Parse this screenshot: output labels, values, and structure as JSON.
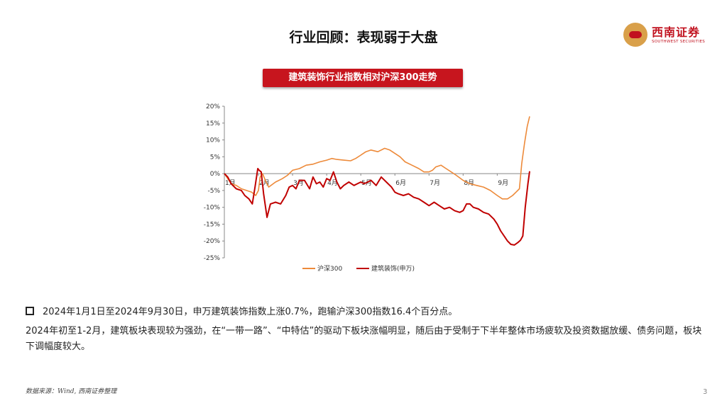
{
  "header": {
    "title": "行业回顾：表现弱于大盘",
    "logo_cn": "西南证券",
    "logo_en": "SOUTHWEST SECURITIES"
  },
  "chart_title": "建筑装饰行业指数相对沪深300走势",
  "notes": {
    "line1": "2024年1月1日至2024年9月30日，申万建筑装饰指数上涨0.7%，跑输沪深300指数16.4个百分点。",
    "line2": "2024年初至1-2月，建筑板块表现较为强劲，在“一带一路”、“中特估”的驱动下板块涨幅明显，随后由于受制于下半年整体市场疲软及投资数据放缓、债务问题，板块下调幅度较大。"
  },
  "source": "数据来源：Wind, 西南证券整理",
  "page_number": "3",
  "colors": {
    "accent": "#c7151e",
    "hs300": "#ed8a3a",
    "construction": "#c00000"
  },
  "chart_data": {
    "type": "line",
    "title": "建筑装饰行业指数相对沪深300走势",
    "xlabel": "",
    "ylabel": "",
    "x_tick_labels": [
      "1月",
      "2月",
      "3月",
      "4月",
      "5月",
      "6月",
      "7月",
      "8月",
      "9月"
    ],
    "x_tick_positions": [
      1,
      2,
      3,
      4,
      5,
      6,
      7,
      8,
      9
    ],
    "xlim": [
      1,
      9.95
    ],
    "ylim": [
      -25,
      20
    ],
    "y_ticks": [
      20,
      15,
      10,
      5,
      0,
      -5,
      -10,
      -15,
      -20,
      -25
    ],
    "y_tick_labels": [
      "20%",
      "15%",
      "10%",
      "5%",
      "0%",
      "-5%",
      "-10%",
      "-15%",
      "-20%",
      "-25%"
    ],
    "legend_position": "bottom",
    "series": [
      {
        "name": "沪深300",
        "color": "#ed8a3a",
        "x": [
          1.0,
          1.1,
          1.2,
          1.35,
          1.5,
          1.65,
          1.8,
          1.92,
          2.0,
          2.05,
          2.12,
          2.2,
          2.3,
          2.5,
          2.7,
          2.85,
          3.0,
          3.2,
          3.4,
          3.6,
          3.8,
          4.0,
          4.15,
          4.3,
          4.5,
          4.7,
          4.85,
          5.0,
          5.15,
          5.3,
          5.5,
          5.7,
          5.85,
          6.0,
          6.15,
          6.3,
          6.5,
          6.7,
          6.85,
          7.0,
          7.1,
          7.2,
          7.35,
          7.5,
          7.65,
          7.8,
          8.0,
          8.2,
          8.4,
          8.6,
          8.8,
          9.0,
          9.15,
          9.3,
          9.45,
          9.55,
          9.65,
          9.72,
          9.8,
          9.88,
          9.95
        ],
        "y": [
          0,
          -1.5,
          -3,
          -3.5,
          -4.5,
          -5,
          -5.5,
          -6.5,
          -5,
          -1,
          0,
          -2,
          -4,
          -2.5,
          -1.5,
          -0.5,
          1,
          1.5,
          2.5,
          2.8,
          3.5,
          4,
          4.5,
          4.2,
          4.0,
          3.8,
          4.5,
          5.5,
          6.5,
          7.0,
          6.5,
          7.5,
          7.0,
          6.0,
          5.0,
          3.5,
          2.5,
          1.5,
          0.5,
          0.5,
          1.0,
          2.0,
          2.5,
          1.5,
          0.5,
          -0.5,
          -2.0,
          -3.0,
          -3.5,
          -4.0,
          -5.0,
          -6.5,
          -7.5,
          -7.5,
          -6.5,
          -5.5,
          -4.5,
          3.0,
          9.0,
          14.0,
          17.0
        ]
      },
      {
        "name": "建筑装饰(申万)",
        "color": "#c00000",
        "x": [
          1.0,
          1.1,
          1.2,
          1.35,
          1.5,
          1.6,
          1.72,
          1.82,
          1.9,
          1.98,
          2.02,
          2.08,
          2.15,
          2.25,
          2.35,
          2.5,
          2.65,
          2.8,
          2.9,
          3.0,
          3.1,
          3.2,
          3.35,
          3.5,
          3.6,
          3.7,
          3.8,
          3.9,
          4.0,
          4.1,
          4.2,
          4.3,
          4.4,
          4.5,
          4.65,
          4.8,
          4.9,
          5.0,
          5.1,
          5.2,
          5.3,
          5.45,
          5.6,
          5.75,
          5.9,
          6.0,
          6.1,
          6.25,
          6.4,
          6.55,
          6.7,
          6.85,
          7.0,
          7.15,
          7.3,
          7.45,
          7.6,
          7.75,
          7.9,
          8.0,
          8.1,
          8.2,
          8.3,
          8.45,
          8.6,
          8.75,
          8.9,
          9.0,
          9.1,
          9.2,
          9.3,
          9.4,
          9.5,
          9.6,
          9.68,
          9.75,
          9.82,
          9.9,
          9.95
        ],
        "y": [
          0,
          -1,
          -3,
          -4.5,
          -5,
          -6.5,
          -7.5,
          -9,
          -4,
          1.5,
          1.0,
          0.5,
          -6,
          -13,
          -9,
          -8.5,
          -9.0,
          -6.5,
          -4.0,
          -3.5,
          -4.5,
          -2.0,
          -2.0,
          -4.5,
          -1.0,
          -3.0,
          -2.5,
          -4.0,
          -1.5,
          -2.0,
          0.5,
          -2.5,
          -4.5,
          -3.5,
          -2.5,
          -3.5,
          -3.0,
          -2.5,
          -3.0,
          -2.5,
          -2.0,
          -3.5,
          -1.0,
          -2.5,
          -4.0,
          -5.5,
          -6.0,
          -6.5,
          -6.0,
          -7.0,
          -7.5,
          -8.5,
          -9.5,
          -8.5,
          -9.5,
          -10.5,
          -10.0,
          -11.0,
          -11.5,
          -11.0,
          -9.0,
          -9.0,
          -10.0,
          -10.5,
          -11.5,
          -12.0,
          -13.5,
          -15.0,
          -17.0,
          -18.5,
          -20.0,
          -21.0,
          -21.2,
          -20.5,
          -19.8,
          -18.5,
          -10.0,
          -3.0,
          0.7
        ]
      }
    ]
  }
}
